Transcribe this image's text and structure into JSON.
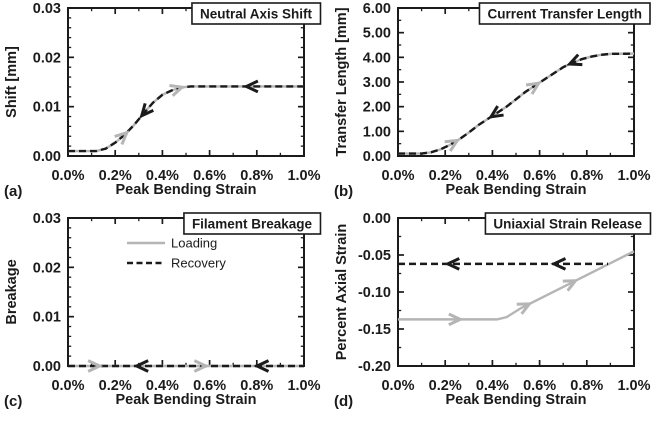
{
  "figure_name": "bending-hysteresis-model-results",
  "colors": {
    "loading_gray": "#b5b5b5",
    "recovery_black": "#1b1b1b",
    "frame": "#1b1b1b",
    "title_box_bg": "#ffffff",
    "text": "#1b1b1b"
  },
  "chart_data": [
    {
      "id": "a",
      "type": "line",
      "panel_label": "(a)",
      "title": "Neutral Axis Shift",
      "xlabel": "Peak Bending Strain",
      "ylabel": "Shift [mm]",
      "xlim": [
        0,
        1
      ],
      "ylim": [
        0,
        0.03
      ],
      "x_tick_values": [
        0,
        0.2,
        0.4,
        0.6,
        0.8,
        1.0
      ],
      "x_tick_labels": [
        "0.0%",
        "0.2%",
        "0.4%",
        "0.6%",
        "0.8%",
        "1.0%"
      ],
      "y_tick_values": [
        0,
        0.01,
        0.02,
        0.03
      ],
      "y_tick_labels": [
        "0.00",
        "0.01",
        "0.02",
        "0.03"
      ],
      "x_minor_step": 0.1,
      "y_minor_step": 0.002,
      "grid": false,
      "series": [
        {
          "name": "Loading",
          "color": "gray",
          "style": "solid",
          "points": [
            [
              0,
              0.001
            ],
            [
              0.12,
              0.001
            ],
            [
              0.16,
              0.0015
            ],
            [
              0.2,
              0.0027
            ],
            [
              0.24,
              0.0043
            ],
            [
              0.28,
              0.0063
            ],
            [
              0.32,
              0.0086
            ],
            [
              0.36,
              0.0108
            ],
            [
              0.4,
              0.0124
            ],
            [
              0.44,
              0.0133
            ],
            [
              0.48,
              0.0139
            ],
            [
              0.52,
              0.0141
            ],
            [
              0.6,
              0.0141
            ],
            [
              1.0,
              0.0141
            ]
          ]
        },
        {
          "name": "Recovery",
          "color": "black",
          "style": "dashed",
          "points": [
            [
              0,
              0.001
            ],
            [
              0.12,
              0.001
            ],
            [
              0.16,
              0.0015
            ],
            [
              0.2,
              0.0027
            ],
            [
              0.24,
              0.0043
            ],
            [
              0.28,
              0.0063
            ],
            [
              0.32,
              0.0086
            ],
            [
              0.36,
              0.0108
            ],
            [
              0.4,
              0.0124
            ],
            [
              0.44,
              0.0133
            ],
            [
              0.48,
              0.0139
            ],
            [
              0.52,
              0.0141
            ],
            [
              0.6,
              0.0141
            ],
            [
              1.0,
              0.0141
            ]
          ]
        }
      ],
      "arrows": [
        {
          "on": "Loading",
          "x": 0.235,
          "dir": "forward"
        },
        {
          "on": "Recovery",
          "x": 0.325,
          "dir": "back"
        },
        {
          "on": "Loading",
          "x": 0.465,
          "dir": "forward"
        },
        {
          "on": "Recovery",
          "x": 0.775,
          "dir": "back"
        }
      ]
    },
    {
      "id": "b",
      "type": "line",
      "panel_label": "(b)",
      "title": "Current Transfer Length",
      "xlabel": "Peak Bending Strain",
      "ylabel": "Transfer Length [mm]",
      "xlim": [
        0,
        1
      ],
      "ylim": [
        0,
        6
      ],
      "x_tick_values": [
        0,
        0.2,
        0.4,
        0.6,
        0.8,
        1.0
      ],
      "x_tick_labels": [
        "0.0%",
        "0.2%",
        "0.4%",
        "0.6%",
        "0.8%",
        "1.0%"
      ],
      "y_tick_values": [
        0,
        1,
        2,
        3,
        4,
        5,
        6
      ],
      "y_tick_labels": [
        "0.00",
        "1.00",
        "2.00",
        "3.00",
        "4.00",
        "5.00",
        "6.00"
      ],
      "x_minor_step": 0.1,
      "y_minor_step": 0.5,
      "grid": false,
      "series": [
        {
          "name": "Loading",
          "color": "gray",
          "style": "solid",
          "points": [
            [
              0,
              0.1
            ],
            [
              0.1,
              0.1
            ],
            [
              0.14,
              0.15
            ],
            [
              0.18,
              0.27
            ],
            [
              0.22,
              0.45
            ],
            [
              0.26,
              0.68
            ],
            [
              0.3,
              0.95
            ],
            [
              0.34,
              1.25
            ],
            [
              0.38,
              1.5
            ],
            [
              0.42,
              1.75
            ],
            [
              0.46,
              2.0
            ],
            [
              0.5,
              2.3
            ],
            [
              0.54,
              2.6
            ],
            [
              0.58,
              2.85
            ],
            [
              0.62,
              3.1
            ],
            [
              0.66,
              3.35
            ],
            [
              0.7,
              3.6
            ],
            [
              0.74,
              3.78
            ],
            [
              0.78,
              3.93
            ],
            [
              0.82,
              4.03
            ],
            [
              0.86,
              4.1
            ],
            [
              0.9,
              4.14
            ],
            [
              1.0,
              4.15
            ]
          ]
        },
        {
          "name": "Recovery",
          "color": "black",
          "style": "dashed",
          "points": [
            [
              0,
              0.1
            ],
            [
              0.1,
              0.1
            ],
            [
              0.14,
              0.15
            ],
            [
              0.18,
              0.27
            ],
            [
              0.22,
              0.45
            ],
            [
              0.26,
              0.68
            ],
            [
              0.3,
              0.95
            ],
            [
              0.34,
              1.25
            ],
            [
              0.38,
              1.5
            ],
            [
              0.42,
              1.75
            ],
            [
              0.46,
              2.0
            ],
            [
              0.5,
              2.3
            ],
            [
              0.54,
              2.6
            ],
            [
              0.58,
              2.85
            ],
            [
              0.62,
              3.1
            ],
            [
              0.66,
              3.35
            ],
            [
              0.7,
              3.6
            ],
            [
              0.74,
              3.78
            ],
            [
              0.78,
              3.93
            ],
            [
              0.82,
              4.03
            ],
            [
              0.86,
              4.1
            ],
            [
              0.9,
              4.14
            ],
            [
              1.0,
              4.15
            ]
          ]
        }
      ],
      "arrows": [
        {
          "on": "Loading",
          "x": 0.235,
          "dir": "forward"
        },
        {
          "on": "Recovery",
          "x": 0.41,
          "dir": "back"
        },
        {
          "on": "Loading",
          "x": 0.58,
          "dir": "forward"
        },
        {
          "on": "Recovery",
          "x": 0.745,
          "dir": "back"
        }
      ]
    },
    {
      "id": "c",
      "type": "line",
      "panel_label": "(c)",
      "title": "Filament Breakage",
      "xlabel": "Peak Bending Strain",
      "ylabel": "Breakage",
      "xlim": [
        0,
        1
      ],
      "ylim": [
        0,
        0.03
      ],
      "x_tick_values": [
        0,
        0.2,
        0.4,
        0.6,
        0.8,
        1.0
      ],
      "x_tick_labels": [
        "0.0%",
        "0.2%",
        "0.4%",
        "0.6%",
        "0.8%",
        "1.0%"
      ],
      "y_tick_values": [
        0,
        0.01,
        0.02,
        0.03
      ],
      "y_tick_labels": [
        "0.00",
        "0.01",
        "0.02",
        "0.03"
      ],
      "x_minor_step": 0.1,
      "y_minor_step": 0.002,
      "grid": false,
      "legend": {
        "position": "upper-center",
        "entries": [
          {
            "label": "Loading",
            "series": "Loading"
          },
          {
            "label": "Recovery",
            "series": "Recovery"
          }
        ]
      },
      "series": [
        {
          "name": "Loading",
          "color": "gray",
          "style": "solid",
          "points": [
            [
              0,
              0
            ],
            [
              1,
              0
            ]
          ]
        },
        {
          "name": "Recovery",
          "color": "black",
          "style": "dashed",
          "points": [
            [
              0,
              0
            ],
            [
              1,
              0
            ]
          ]
        }
      ],
      "arrows": [
        {
          "on": "Loading",
          "x": 0.115,
          "dir": "forward"
        },
        {
          "on": "Recovery",
          "x": 0.31,
          "dir": "back"
        },
        {
          "on": "Loading",
          "x": 0.565,
          "dir": "forward"
        },
        {
          "on": "Recovery",
          "x": 0.82,
          "dir": "back"
        }
      ]
    },
    {
      "id": "d",
      "type": "line",
      "panel_label": "(d)",
      "title": "Uniaxial Strain Release",
      "xlabel": "Peak Bending Strain",
      "ylabel": "Percent Axial Strain",
      "xlim": [
        0,
        1
      ],
      "ylim": [
        -0.2,
        0.0
      ],
      "x_tick_values": [
        0,
        0.2,
        0.4,
        0.6,
        0.8,
        1.0
      ],
      "x_tick_labels": [
        "0.0%",
        "0.2%",
        "0.4%",
        "0.6%",
        "0.8%",
        "1.0%"
      ],
      "y_tick_values": [
        0,
        -0.05,
        -0.1,
        -0.15,
        -0.2
      ],
      "y_tick_labels": [
        "0.00",
        "-0.05",
        "-0.10",
        "-0.15",
        "-0.20"
      ],
      "x_minor_step": 0.1,
      "y_minor_step": 0.025,
      "grid": false,
      "series": [
        {
          "name": "Loading",
          "color": "gray",
          "style": "solid",
          "points": [
            [
              0,
              -0.137
            ],
            [
              0.42,
              -0.137
            ],
            [
              0.46,
              -0.134
            ],
            [
              0.52,
              -0.122
            ],
            [
              1.0,
              -0.045
            ]
          ]
        },
        {
          "name": "Recovery",
          "color": "black",
          "style": "dashed",
          "points": [
            [
              0,
              -0.062
            ],
            [
              0.89,
              -0.062
            ]
          ]
        }
      ],
      "arrows": [
        {
          "on": "Loading",
          "x": 0.245,
          "dir": "forward"
        },
        {
          "on": "Loading",
          "x": 0.54,
          "dir": "forward"
        },
        {
          "on": "Loading",
          "x": 0.735,
          "dir": "forward"
        },
        {
          "on": "Recovery",
          "x": 0.23,
          "dir": "back"
        },
        {
          "on": "Recovery",
          "x": 0.68,
          "dir": "back"
        }
      ]
    }
  ]
}
